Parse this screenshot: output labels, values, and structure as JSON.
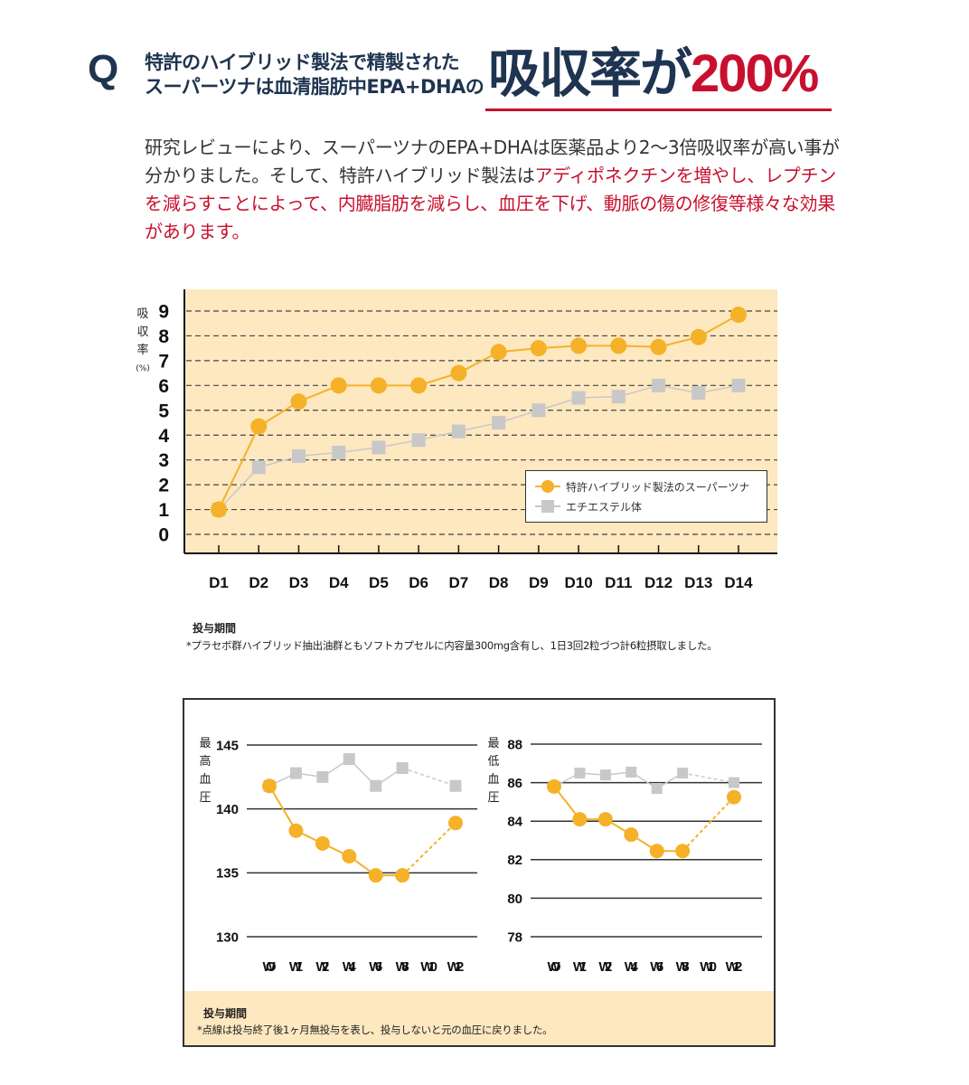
{
  "header": {
    "q_mark": "Q",
    "line1": "特許のハイブリッド製法で精製された",
    "line2": "スーパーツナは血清脂肪中EPA+DHAの",
    "big_prefix": "吸収率が",
    "big_value": "200%"
  },
  "intro": {
    "plain": "研究レビューにより、スーパーツナのEPA+DHAは医薬品より2〜3倍吸収率が高い事が分かりました。そして、特許ハイブリッド製法は",
    "highlight": "アディポネクチンを増やし、レプチンを減らすことによって、内臓脂肪を減らし、血圧を下げ、動脈の傷の修復等様々な効果があります。"
  },
  "colors": {
    "navy": "#1e3450",
    "red": "#c8102e",
    "orange": "#f5b127",
    "gray": "#c8c8c8",
    "chart_bg": "#fde8c0"
  },
  "chart_data": [
    {
      "type": "line",
      "ylabel_chars": [
        "吸",
        "収",
        "率"
      ],
      "ylabel_unit": "(%)",
      "xlabel": "投与期間",
      "categories": [
        "D1",
        "D2",
        "D3",
        "D4",
        "D5",
        "D6",
        "D7",
        "D8",
        "D9",
        "D10",
        "D11",
        "D12",
        "D13",
        "D14"
      ],
      "yticks": [
        "0",
        "1",
        "2",
        "3",
        "4",
        "5",
        "6",
        "7",
        "8",
        "9"
      ],
      "ylim": [
        0,
        9
      ],
      "grid": true,
      "legend": "bottom-right",
      "series": [
        {
          "name": "特許ハイブリッド製法のスーパーツナ",
          "marker": "circle",
          "values": [
            1,
            4.35,
            5.35,
            6,
            6,
            6,
            6.5,
            7.35,
            7.5,
            7.6,
            7.6,
            7.55,
            7.95,
            8.85
          ]
        },
        {
          "name": "エチエステル体",
          "marker": "square",
          "values": [
            1,
            2.7,
            3.15,
            3.3,
            3.5,
            3.8,
            4.15,
            4.5,
            5.0,
            5.5,
            5.55,
            6.0,
            5.7,
            6.0
          ]
        }
      ],
      "note": "*プラセボ群ハイブリッド抽出油群ともソフトカプセルに内容量300mg含有し、1日3回2粒づつ計6粒摂取しました。"
    },
    {
      "type": "line",
      "ylabel_chars": [
        "最",
        "高",
        "血",
        "圧"
      ],
      "categories": [
        "WO",
        "W1",
        "W2",
        "W4",
        "W6",
        "W8",
        "W10",
        "W12"
      ],
      "yticks": [
        "130",
        "135",
        "140",
        "145"
      ],
      "ylim": [
        130,
        145
      ],
      "grid": true,
      "dashed_from_index": 5,
      "series": [
        {
          "name": "特許ハイブリッド製法のスーパーツナ",
          "marker": "circle",
          "values": [
            141.8,
            138.3,
            137.3,
            136.3,
            134.8,
            134.8,
            null,
            138.9
          ]
        },
        {
          "name": "エチエステル体",
          "marker": "square",
          "values": [
            141.8,
            142.8,
            142.5,
            143.9,
            141.8,
            143.2,
            null,
            141.8
          ]
        }
      ]
    },
    {
      "type": "line",
      "ylabel_chars": [
        "最",
        "低",
        "血",
        "圧"
      ],
      "categories": [
        "WO",
        "W1",
        "W2",
        "W4",
        "W6",
        "W8",
        "W10",
        "W12"
      ],
      "yticks": [
        "78",
        "80",
        "82",
        "84",
        "86",
        "88"
      ],
      "ylim": [
        78,
        88
      ],
      "grid": true,
      "dashed_from_index": 5,
      "series": [
        {
          "name": "特許ハイブリッド製法のスーパーツナ",
          "marker": "circle",
          "values": [
            85.8,
            84.1,
            84.1,
            83.3,
            82.45,
            82.45,
            null,
            85.25
          ]
        },
        {
          "name": "エチエステル体",
          "marker": "square",
          "values": [
            85.8,
            86.5,
            86.4,
            86.55,
            85.7,
            86.5,
            null,
            86.0
          ]
        }
      ]
    }
  ],
  "bp_note": {
    "title": "投与期間",
    "text": "*点線は投与終了後1ヶ月無投与を表し、投与しないと元の血圧に戻りました。"
  }
}
